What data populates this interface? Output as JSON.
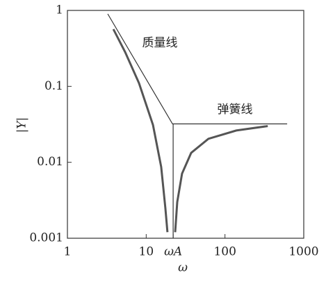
{
  "chart_data": {
    "type": "line",
    "xlabel": "ω",
    "ylabel": "|Y|",
    "xscale": "log",
    "yscale": "log",
    "xlim": [
      1,
      1000
    ],
    "ylim": [
      0.001,
      1
    ],
    "xticks": [
      1,
      10,
      {
        "value": 22,
        "label": "ωA"
      },
      100,
      1000
    ],
    "yticks": [
      0.001,
      0.01,
      0.1,
      1
    ],
    "annotations": [
      "质量线",
      "弹簧线"
    ],
    "series": [
      {
        "color": "#555",
        "x": [
          3.83,
          5.4,
          8.1,
          12.2,
          15.5,
          17.5,
          18.6,
          20.8,
          23.3,
          24.8,
          28.5,
          37.2,
          61.6,
          139,
          349
        ],
        "values": [
          0.566,
          0.283,
          0.11,
          0.031,
          0.0087,
          0.0025,
          0.0012,
          null,
          0.0012,
          0.003,
          0.0071,
          0.0133,
          0.0204,
          0.0262,
          0.03
        ]
      },
      {
        "color": "#333",
        "x": [
          3.25,
          21.6,
          615
        ],
        "values": [
          0.9,
          0.032,
          0.032
        ]
      },
      {
        "color": "#333",
        "x": [
          22,
          22
        ],
        "values": [
          0.032,
          0.001
        ]
      }
    ]
  }
}
